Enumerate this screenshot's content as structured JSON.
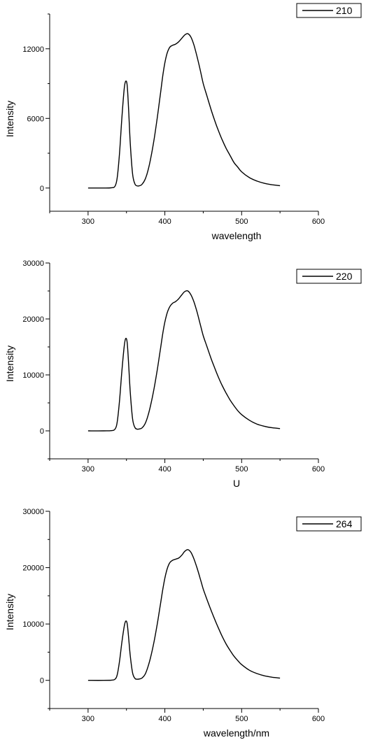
{
  "chart_data": [
    {
      "type": "line",
      "xlabel": "wavelength",
      "ylabel": "Intensity",
      "xlim": [
        250,
        600
      ],
      "ylim": [
        -2000,
        15000
      ],
      "xticks": [
        300,
        400,
        500,
        600
      ],
      "yticks": [
        0,
        6000,
        12000
      ],
      "legend": "top-right",
      "grid": false,
      "series": [
        {
          "name": "210",
          "x": [
            300,
            320,
            330,
            335,
            338,
            341,
            344,
            347,
            349,
            351,
            353,
            355,
            358,
            361,
            364,
            367,
            370,
            374,
            378,
            382,
            386,
            390,
            394,
            398,
            402,
            406,
            410,
            414,
            418,
            422,
            426,
            430,
            434,
            438,
            442,
            446,
            450,
            455,
            460,
            465,
            470,
            475,
            480,
            485,
            490,
            495,
            500,
            510,
            520,
            530,
            540,
            550
          ],
          "y": [
            0,
            0,
            20,
            150,
            900,
            3000,
            6000,
            8500,
            9200,
            8800,
            6500,
            3800,
            1200,
            350,
            180,
            200,
            300,
            700,
            1500,
            2700,
            4200,
            6000,
            8000,
            10000,
            11400,
            12100,
            12300,
            12400,
            12600,
            12900,
            13200,
            13300,
            13000,
            12300,
            11300,
            10200,
            9000,
            7900,
            6800,
            5800,
            4900,
            4100,
            3400,
            2800,
            2200,
            1800,
            1400,
            900,
            600,
            400,
            280,
            200
          ]
        }
      ]
    },
    {
      "type": "line",
      "xlabel": "U",
      "ylabel": "Intensity",
      "xlim": [
        250,
        600
      ],
      "ylim": [
        -5000,
        30000
      ],
      "xticks": [
        300,
        400,
        500,
        600
      ],
      "yticks": [
        0,
        10000,
        20000,
        30000
      ],
      "legend": "top-right",
      "grid": false,
      "series": [
        {
          "name": "220",
          "x": [
            300,
            320,
            330,
            335,
            338,
            341,
            344,
            347,
            349,
            351,
            353,
            355,
            358,
            361,
            364,
            367,
            370,
            374,
            378,
            382,
            386,
            390,
            394,
            398,
            402,
            406,
            410,
            414,
            418,
            422,
            426,
            430,
            434,
            438,
            442,
            446,
            450,
            455,
            460,
            465,
            470,
            475,
            480,
            485,
            490,
            495,
            500,
            510,
            520,
            530,
            540,
            550
          ],
          "y": [
            0,
            0,
            40,
            300,
            1600,
            5400,
            10600,
            15000,
            16500,
            15700,
            11500,
            6800,
            2100,
            600,
            300,
            350,
            500,
            1200,
            2700,
            4900,
            7600,
            10800,
            14400,
            18000,
            20600,
            22100,
            22800,
            23100,
            23600,
            24300,
            24900,
            25000,
            24300,
            23000,
            21200,
            19100,
            17000,
            15000,
            13000,
            11200,
            9500,
            8000,
            6700,
            5500,
            4500,
            3600,
            2900,
            1900,
            1200,
            800,
            550,
            400
          ]
        }
      ]
    },
    {
      "type": "line",
      "xlabel": "wavelength/nm",
      "ylabel": "Intensity",
      "xlim": [
        250,
        600
      ],
      "ylim": [
        -5000,
        30000
      ],
      "xticks": [
        300,
        400,
        500,
        600
      ],
      "yticks": [
        0,
        10000,
        20000,
        30000
      ],
      "legend": "top-right",
      "grid": false,
      "series": [
        {
          "name": "264",
          "x": [
            300,
            320,
            330,
            335,
            338,
            341,
            344,
            347,
            349,
            351,
            353,
            355,
            358,
            361,
            364,
            367,
            370,
            374,
            378,
            382,
            386,
            390,
            394,
            398,
            402,
            406,
            410,
            414,
            418,
            422,
            426,
            430,
            434,
            438,
            442,
            446,
            450,
            455,
            460,
            465,
            470,
            475,
            480,
            485,
            490,
            495,
            500,
            510,
            520,
            530,
            540,
            550
          ],
          "y": [
            0,
            0,
            30,
            200,
            1000,
            3400,
            6700,
            9500,
            10500,
            10000,
            7300,
            4300,
            1300,
            350,
            200,
            250,
            400,
            1000,
            2400,
            4400,
            6900,
            9900,
            13300,
            16700,
            19300,
            20800,
            21300,
            21500,
            21700,
            22200,
            22900,
            23200,
            22700,
            21500,
            19900,
            18100,
            16200,
            14300,
            12500,
            10800,
            9200,
            7700,
            6400,
            5300,
            4300,
            3500,
            2800,
            1800,
            1200,
            800,
            550,
            400
          ]
        }
      ]
    }
  ]
}
